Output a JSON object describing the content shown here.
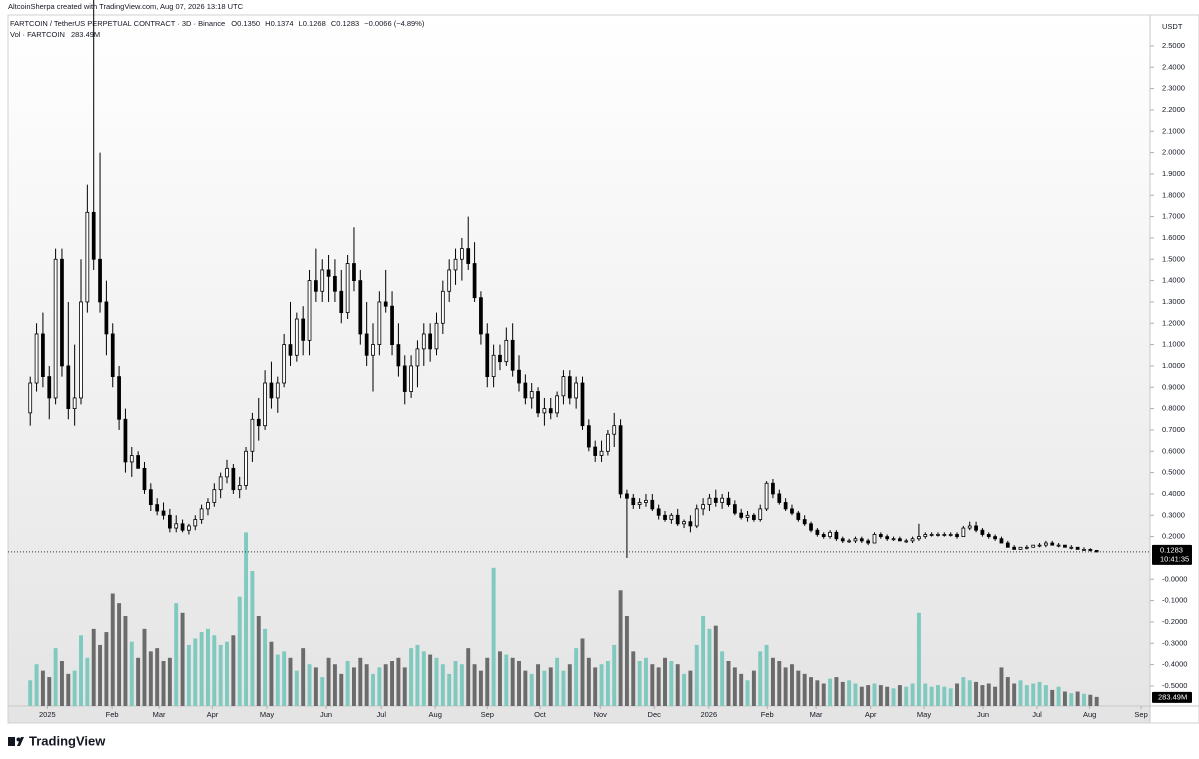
{
  "attribution": "AltcoinSherpa created with TradingView.com, Aug 07, 2026 13:18 UTC",
  "brand": "TradingView",
  "chart_data": {
    "type": "candlestick",
    "symbol": "FARTCOIN / TetherUS PERPETUAL CONTRACT · 3D · Binance",
    "ohlc_header": [
      "O0.1350",
      "H0.1374",
      "L0.1268",
      "C0.1283",
      "−0.0066 (−4.89%)"
    ],
    "volume_title": "Vol · FARTCOIN",
    "volume_last_label": "283.49M",
    "currency": "USDT",
    "countdown": "10:41:35",
    "up_color": "#ffffff",
    "down_color": "#000000",
    "volume_up_color": "#80c9bf",
    "volume_down_color": "#6b6b6b",
    "candles": [
      [
        0.78,
        0.95,
        0.72,
        0.92
      ],
      [
        0.92,
        1.2,
        0.88,
        1.15
      ],
      [
        1.15,
        1.25,
        0.9,
        0.95
      ],
      [
        0.95,
        1.0,
        0.75,
        0.85
      ],
      [
        0.85,
        1.55,
        0.82,
        1.5
      ],
      [
        1.5,
        1.55,
        0.95,
        1.0
      ],
      [
        1.0,
        1.3,
        0.75,
        0.8
      ],
      [
        0.8,
        1.1,
        0.72,
        0.85
      ],
      [
        0.85,
        1.5,
        0.82,
        1.3
      ],
      [
        1.3,
        1.85,
        1.25,
        1.72
      ],
      [
        1.72,
        2.75,
        1.45,
        1.5
      ],
      [
        1.5,
        2.0,
        1.25,
        1.3
      ],
      [
        1.3,
        1.4,
        1.05,
        1.15
      ],
      [
        1.15,
        1.2,
        0.9,
        0.95
      ],
      [
        0.95,
        1.0,
        0.7,
        0.75
      ],
      [
        0.75,
        0.8,
        0.5,
        0.55
      ],
      [
        0.55,
        0.62,
        0.48,
        0.58
      ],
      [
        0.58,
        0.6,
        0.52,
        0.52
      ],
      [
        0.52,
        0.55,
        0.4,
        0.42
      ],
      [
        0.42,
        0.45,
        0.32,
        0.35
      ],
      [
        0.35,
        0.38,
        0.3,
        0.32
      ],
      [
        0.32,
        0.36,
        0.28,
        0.3
      ],
      [
        0.3,
        0.33,
        0.22,
        0.24
      ],
      [
        0.24,
        0.3,
        0.22,
        0.26
      ],
      [
        0.26,
        0.28,
        0.22,
        0.23
      ],
      [
        0.23,
        0.26,
        0.21,
        0.25
      ],
      [
        0.25,
        0.3,
        0.23,
        0.28
      ],
      [
        0.28,
        0.35,
        0.26,
        0.33
      ],
      [
        0.33,
        0.38,
        0.3,
        0.36
      ],
      [
        0.36,
        0.45,
        0.34,
        0.42
      ],
      [
        0.42,
        0.5,
        0.38,
        0.48
      ],
      [
        0.48,
        0.56,
        0.45,
        0.52
      ],
      [
        0.52,
        0.54,
        0.4,
        0.42
      ],
      [
        0.42,
        0.48,
        0.38,
        0.44
      ],
      [
        0.44,
        0.62,
        0.42,
        0.6
      ],
      [
        0.6,
        0.78,
        0.55,
        0.75
      ],
      [
        0.75,
        0.85,
        0.65,
        0.72
      ],
      [
        0.72,
        0.98,
        0.7,
        0.92
      ],
      [
        0.92,
        1.02,
        0.8,
        0.85
      ],
      [
        0.85,
        0.95,
        0.78,
        0.92
      ],
      [
        0.92,
        1.15,
        0.9,
        1.1
      ],
      [
        1.1,
        1.3,
        1.0,
        1.05
      ],
      [
        1.05,
        1.25,
        1.02,
        1.22
      ],
      [
        1.22,
        1.28,
        1.05,
        1.12
      ],
      [
        1.12,
        1.45,
        1.05,
        1.4
      ],
      [
        1.4,
        1.55,
        1.3,
        1.35
      ],
      [
        1.35,
        1.5,
        1.3,
        1.45
      ],
      [
        1.45,
        1.52,
        1.3,
        1.42
      ],
      [
        1.42,
        1.5,
        1.3,
        1.35
      ],
      [
        1.35,
        1.45,
        1.2,
        1.25
      ],
      [
        1.25,
        1.52,
        1.22,
        1.48
      ],
      [
        1.48,
        1.65,
        1.35,
        1.4
      ],
      [
        1.4,
        1.45,
        1.1,
        1.15
      ],
      [
        1.15,
        1.3,
        1.0,
        1.05
      ],
      [
        1.05,
        1.2,
        0.88,
        1.1
      ],
      [
        1.1,
        1.35,
        1.05,
        1.3
      ],
      [
        1.3,
        1.45,
        1.25,
        1.28
      ],
      [
        1.28,
        1.35,
        1.05,
        1.1
      ],
      [
        1.1,
        1.2,
        0.95,
        1.0
      ],
      [
        1.0,
        1.05,
        0.82,
        0.88
      ],
      [
        0.88,
        1.05,
        0.85,
        1.0
      ],
      [
        1.0,
        1.12,
        0.9,
        1.08
      ],
      [
        1.08,
        1.2,
        1.0,
        1.15
      ],
      [
        1.15,
        1.2,
        1.02,
        1.08
      ],
      [
        1.08,
        1.25,
        1.05,
        1.2
      ],
      [
        1.2,
        1.4,
        1.15,
        1.35
      ],
      [
        1.35,
        1.5,
        1.3,
        1.45
      ],
      [
        1.45,
        1.55,
        1.38,
        1.5
      ],
      [
        1.5,
        1.6,
        1.4,
        1.55
      ],
      [
        1.55,
        1.7,
        1.45,
        1.48
      ],
      [
        1.48,
        1.58,
        1.3,
        1.32
      ],
      [
        1.32,
        1.35,
        1.1,
        1.15
      ],
      [
        1.15,
        1.2,
        0.9,
        0.95
      ],
      [
        0.95,
        1.1,
        0.9,
        1.05
      ],
      [
        1.05,
        1.1,
        0.98,
        1.02
      ],
      [
        1.02,
        1.18,
        1.0,
        1.12
      ],
      [
        1.12,
        1.2,
        0.95,
        0.98
      ],
      [
        0.98,
        1.05,
        0.88,
        0.92
      ],
      [
        0.92,
        0.96,
        0.82,
        0.85
      ],
      [
        0.85,
        0.92,
        0.8,
        0.88
      ],
      [
        0.88,
        0.9,
        0.76,
        0.78
      ],
      [
        0.78,
        0.85,
        0.72,
        0.8
      ],
      [
        0.8,
        0.85,
        0.75,
        0.78
      ],
      [
        0.78,
        0.88,
        0.76,
        0.86
      ],
      [
        0.86,
        0.98,
        0.82,
        0.95
      ],
      [
        0.95,
        0.98,
        0.82,
        0.85
      ],
      [
        0.85,
        0.95,
        0.8,
        0.92
      ],
      [
        0.92,
        0.95,
        0.7,
        0.72
      ],
      [
        0.72,
        0.75,
        0.6,
        0.62
      ],
      [
        0.62,
        0.65,
        0.55,
        0.58
      ],
      [
        0.58,
        0.65,
        0.55,
        0.6
      ],
      [
        0.6,
        0.7,
        0.58,
        0.68
      ],
      [
        0.68,
        0.78,
        0.62,
        0.72
      ],
      [
        0.72,
        0.75,
        0.38,
        0.4
      ],
      [
        0.4,
        0.42,
        0.1,
        0.38
      ],
      [
        0.38,
        0.4,
        0.33,
        0.35
      ],
      [
        0.35,
        0.38,
        0.33,
        0.36
      ],
      [
        0.36,
        0.4,
        0.34,
        0.37
      ],
      [
        0.37,
        0.4,
        0.32,
        0.33
      ],
      [
        0.33,
        0.35,
        0.28,
        0.3
      ],
      [
        0.3,
        0.32,
        0.27,
        0.28
      ],
      [
        0.28,
        0.31,
        0.26,
        0.3
      ],
      [
        0.3,
        0.33,
        0.25,
        0.26
      ],
      [
        0.26,
        0.28,
        0.24,
        0.27
      ],
      [
        0.27,
        0.3,
        0.22,
        0.25
      ],
      [
        0.25,
        0.35,
        0.24,
        0.33
      ],
      [
        0.33,
        0.38,
        0.3,
        0.35
      ],
      [
        0.35,
        0.4,
        0.32,
        0.38
      ],
      [
        0.38,
        0.42,
        0.34,
        0.36
      ],
      [
        0.36,
        0.4,
        0.33,
        0.38
      ],
      [
        0.38,
        0.41,
        0.34,
        0.35
      ],
      [
        0.35,
        0.37,
        0.3,
        0.31
      ],
      [
        0.31,
        0.33,
        0.28,
        0.29
      ],
      [
        0.29,
        0.32,
        0.27,
        0.3
      ],
      [
        0.3,
        0.31,
        0.27,
        0.28
      ],
      [
        0.28,
        0.35,
        0.27,
        0.33
      ],
      [
        0.33,
        0.46,
        0.32,
        0.45
      ],
      [
        0.45,
        0.47,
        0.38,
        0.4
      ],
      [
        0.4,
        0.42,
        0.35,
        0.36
      ],
      [
        0.36,
        0.38,
        0.32,
        0.33
      ],
      [
        0.33,
        0.35,
        0.3,
        0.31
      ],
      [
        0.31,
        0.32,
        0.27,
        0.28
      ],
      [
        0.28,
        0.3,
        0.25,
        0.26
      ],
      [
        0.26,
        0.27,
        0.22,
        0.23
      ],
      [
        0.23,
        0.24,
        0.2,
        0.21
      ],
      [
        0.21,
        0.22,
        0.19,
        0.2
      ],
      [
        0.2,
        0.23,
        0.19,
        0.22
      ],
      [
        0.22,
        0.23,
        0.18,
        0.19
      ],
      [
        0.19,
        0.2,
        0.17,
        0.18
      ],
      [
        0.18,
        0.19,
        0.17,
        0.18
      ],
      [
        0.18,
        0.2,
        0.17,
        0.19
      ],
      [
        0.19,
        0.2,
        0.17,
        0.18
      ],
      [
        0.18,
        0.19,
        0.16,
        0.17
      ],
      [
        0.17,
        0.22,
        0.17,
        0.21
      ],
      [
        0.21,
        0.22,
        0.19,
        0.2
      ],
      [
        0.2,
        0.21,
        0.18,
        0.19
      ],
      [
        0.19,
        0.2,
        0.18,
        0.19
      ],
      [
        0.19,
        0.2,
        0.18,
        0.18
      ],
      [
        0.18,
        0.19,
        0.17,
        0.18
      ],
      [
        0.18,
        0.2,
        0.17,
        0.19
      ],
      [
        0.19,
        0.26,
        0.18,
        0.2
      ],
      [
        0.2,
        0.22,
        0.19,
        0.21
      ],
      [
        0.21,
        0.22,
        0.2,
        0.21
      ],
      [
        0.21,
        0.22,
        0.2,
        0.21
      ],
      [
        0.21,
        0.22,
        0.2,
        0.21
      ],
      [
        0.21,
        0.22,
        0.2,
        0.21
      ],
      [
        0.21,
        0.22,
        0.19,
        0.2
      ],
      [
        0.2,
        0.25,
        0.2,
        0.24
      ],
      [
        0.24,
        0.27,
        0.23,
        0.25
      ],
      [
        0.25,
        0.27,
        0.22,
        0.23
      ],
      [
        0.23,
        0.24,
        0.2,
        0.21
      ],
      [
        0.21,
        0.22,
        0.19,
        0.2
      ],
      [
        0.2,
        0.21,
        0.18,
        0.19
      ],
      [
        0.19,
        0.2,
        0.17,
        0.17
      ],
      [
        0.17,
        0.18,
        0.15,
        0.15
      ],
      [
        0.15,
        0.16,
        0.14,
        0.14
      ],
      [
        0.14,
        0.15,
        0.14,
        0.15
      ],
      [
        0.15,
        0.16,
        0.14,
        0.15
      ],
      [
        0.15,
        0.16,
        0.15,
        0.16
      ],
      [
        0.16,
        0.17,
        0.15,
        0.16
      ],
      [
        0.16,
        0.18,
        0.15,
        0.17
      ],
      [
        0.17,
        0.18,
        0.16,
        0.16
      ],
      [
        0.16,
        0.17,
        0.15,
        0.16
      ],
      [
        0.16,
        0.16,
        0.15,
        0.15
      ],
      [
        0.15,
        0.16,
        0.14,
        0.15
      ],
      [
        0.15,
        0.15,
        0.14,
        0.14
      ],
      [
        0.14,
        0.15,
        0.135,
        0.14
      ],
      [
        0.14,
        0.145,
        0.13,
        0.135
      ],
      [
        0.135,
        0.1374,
        0.1268,
        0.1283
      ]
    ],
    "volume": [
      800,
      1300,
      1100,
      900,
      1800,
      1400,
      1000,
      1100,
      2200,
      1500,
      2400,
      1900,
      2300,
      3500,
      3200,
      2800,
      2000,
      1500,
      2400,
      1700,
      1800,
      1400,
      1500,
      3200,
      2900,
      1900,
      2100,
      2300,
      2400,
      2200,
      1900,
      2000,
      2200,
      3400,
      5400,
      4200,
      2800,
      2400,
      2000,
      1600,
      1700,
      1500,
      1100,
      1800,
      1300,
      1200,
      900,
      1500,
      1300,
      1000,
      1400,
      1200,
      1500,
      1300,
      1000,
      1200,
      1300,
      1400,
      1500,
      1200,
      1800,
      1900,
      1700,
      1600,
      1500,
      1300,
      1000,
      1400,
      1300,
      1800,
      1300,
      1100,
      1500,
      4300,
      1700,
      1600,
      1500,
      1400,
      1100,
      1000,
      1300,
      1100,
      1200,
      1500,
      1100,
      1300,
      1800,
      2100,
      1500,
      1200,
      1300,
      1400,
      1900,
      3600,
      2800,
      1700,
      1400,
      1500,
      1300,
      1200,
      1500,
      1400,
      1300,
      1000,
      1100,
      1900,
      2800,
      2400,
      2500,
      1700,
      1400,
      1200,
      1000,
      800,
      1100,
      1700,
      1900,
      1500,
      1400,
      1200,
      1300,
      1100,
      1000,
      900,
      800,
      700,
      850,
      900,
      750,
      800,
      700,
      600,
      650,
      700,
      650,
      600,
      550,
      650,
      600,
      700,
      2900,
      700,
      600,
      650,
      600,
      550,
      700,
      900,
      800,
      750,
      650,
      700,
      600,
      1200,
      900,
      700,
      800,
      650,
      700,
      750,
      650,
      500,
      600,
      450,
      400,
      450,
      380,
      350,
      283.49
    ],
    "volume_lim": [
      0,
      5600
    ],
    "xlim": [
      -3.5,
      176.4
    ],
    "xticks": [
      {
        "value": 2.7,
        "label": "2025"
      },
      {
        "value": 12.9,
        "label": "Feb"
      },
      {
        "value": 20.3,
        "label": "Mar"
      },
      {
        "value": 28.7,
        "label": "Apr"
      },
      {
        "value": 37.3,
        "label": "May"
      },
      {
        "value": 46.6,
        "label": "Jun"
      },
      {
        "value": 55.3,
        "label": "Jul"
      },
      {
        "value": 63.8,
        "label": "Aug"
      },
      {
        "value": 72.0,
        "label": "Sep"
      },
      {
        "value": 80.3,
        "label": "Oct"
      },
      {
        "value": 89.8,
        "label": "Nov"
      },
      {
        "value": 98.3,
        "label": "Dec"
      },
      {
        "value": 106.9,
        "label": "2026"
      },
      {
        "value": 116.1,
        "label": "Feb"
      },
      {
        "value": 123.8,
        "label": "Mar"
      },
      {
        "value": 132.4,
        "label": "Apr"
      },
      {
        "value": 140.8,
        "label": "May"
      },
      {
        "value": 150.1,
        "label": "Jun"
      },
      {
        "value": 158.6,
        "label": "Jul"
      },
      {
        "value": 166.9,
        "label": "Aug"
      },
      {
        "value": 175.0,
        "label": "Sep"
      }
    ],
    "ylim": [
      -0.594,
      2.645
    ],
    "yticks": [
      {
        "value": 2.5,
        "label": "2.5000"
      },
      {
        "value": 2.4,
        "label": "2.4000"
      },
      {
        "value": 2.3,
        "label": "2.3000"
      },
      {
        "value": 2.2,
        "label": "2.2000"
      },
      {
        "value": 2.1,
        "label": "2.1000"
      },
      {
        "value": 2.0,
        "label": "2.0000"
      },
      {
        "value": 1.9,
        "label": "1.9000"
      },
      {
        "value": 1.8,
        "label": "1.8000"
      },
      {
        "value": 1.7,
        "label": "1.7000"
      },
      {
        "value": 1.6,
        "label": "1.6000"
      },
      {
        "value": 1.5,
        "label": "1.5000"
      },
      {
        "value": 1.4,
        "label": "1.4000"
      },
      {
        "value": 1.3,
        "label": "1.3000"
      },
      {
        "value": 1.2,
        "label": "1.2000"
      },
      {
        "value": 1.1,
        "label": "1.1000"
      },
      {
        "value": 1.0,
        "label": "1.0000"
      },
      {
        "value": 0.9,
        "label": "0.9000"
      },
      {
        "value": 0.8,
        "label": "0.8000"
      },
      {
        "value": 0.7,
        "label": "0.7000"
      },
      {
        "value": 0.6,
        "label": "0.6000"
      },
      {
        "value": 0.5,
        "label": "0.5000"
      },
      {
        "value": 0.4,
        "label": "0.4000"
      },
      {
        "value": 0.3,
        "label": "0.3000"
      },
      {
        "value": 0.2,
        "label": "0.2000"
      },
      {
        "value": 0,
        "label": "-0.0000"
      },
      {
        "value": -0.1,
        "label": "-0.1000"
      },
      {
        "value": -0.2,
        "label": "-0.2000"
      },
      {
        "value": -0.3,
        "label": "-0.3000"
      },
      {
        "value": -0.4,
        "label": "-0.4000"
      },
      {
        "value": -0.5,
        "label": "-0.5000"
      }
    ]
  }
}
